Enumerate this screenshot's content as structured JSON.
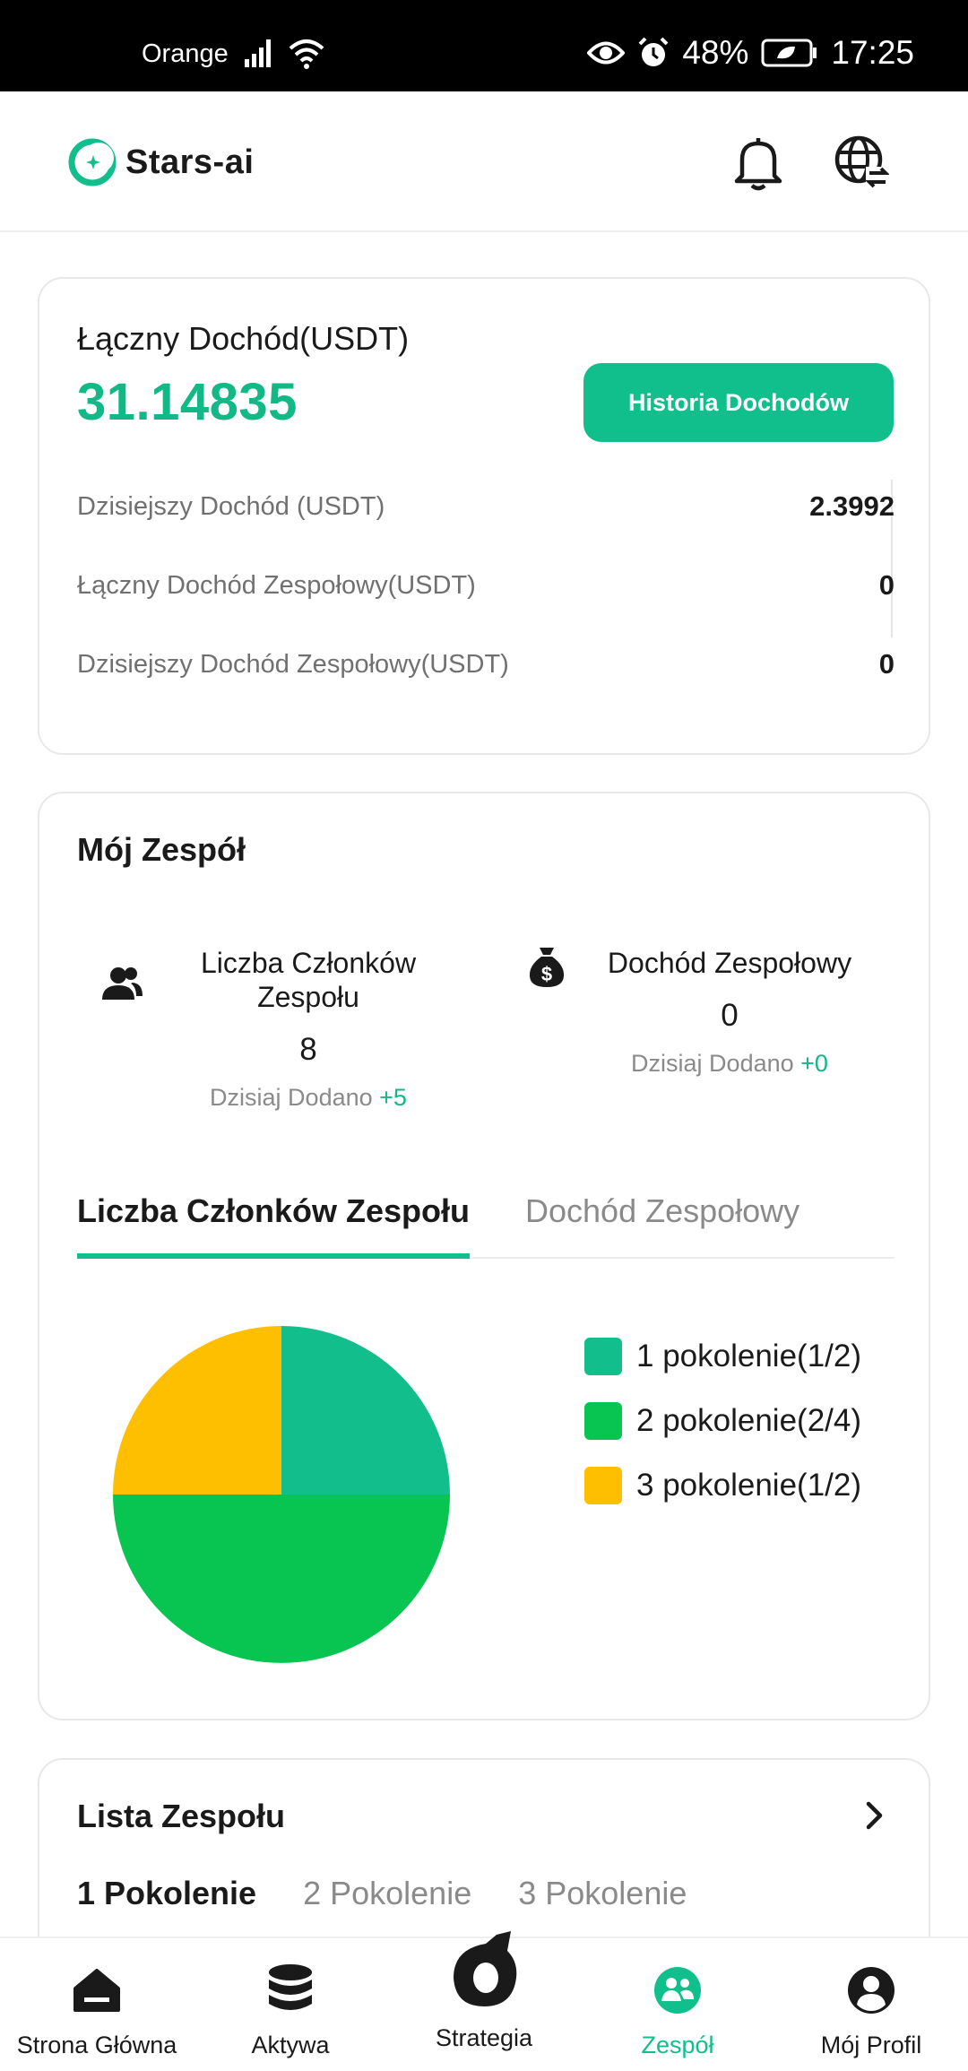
{
  "status_bar": {
    "carrier": "Orange",
    "battery": "48%",
    "time": "17:25"
  },
  "header": {
    "app_name": "Stars-ai"
  },
  "income": {
    "title": "Łączny Dochód(USDT)",
    "total": "31.14835",
    "history_button": "Historia Dochodów",
    "rows": [
      {
        "label": "Dzisiejszy Dochód (USDT)",
        "value": "2.3992"
      },
      {
        "label": "Łączny Dochód Zespołowy(USDT)",
        "value": "0"
      },
      {
        "label": "Dzisiejszy Dochód Zespołowy(USDT)",
        "value": "0"
      }
    ]
  },
  "team": {
    "title": "Mój Zespół",
    "members": {
      "label": "Liczba Członków Zespołu",
      "value": "8",
      "added_label": "Dzisiaj Dodano",
      "added_value": "+5"
    },
    "team_income": {
      "label": "Dochód Zespołowy",
      "value": "0",
      "added_label": "Dzisiaj Dodano",
      "added_value": "+0"
    },
    "tabs": [
      "Liczba Członków Zespołu",
      "Dochód Zespołowy"
    ],
    "active_tab": "Liczba Członków Zespołu"
  },
  "chart_data": {
    "type": "pie",
    "labels": [
      "1 pokolenie(1/2)",
      "2 pokolenie(2/4)",
      "3 pokolenie(1/2)"
    ],
    "values": [
      2,
      4,
      2
    ],
    "colors": [
      "#12bf8c",
      "#08c552",
      "#fdbf00"
    ],
    "legend_position": "right"
  },
  "team_list": {
    "title": "Lista Zespołu",
    "tabs": [
      "1 Pokolenie",
      "2 Pokolenie",
      "3 Pokolenie"
    ],
    "active_tab": "1 Pokolenie"
  },
  "bottom_nav": {
    "items": [
      {
        "label": "Strona Główna",
        "icon": "home-icon"
      },
      {
        "label": "Aktywa",
        "icon": "coins-icon"
      },
      {
        "label": "Strategia",
        "icon": "strategy-icon"
      },
      {
        "label": "Zespół",
        "icon": "team-icon"
      },
      {
        "label": "Mój Profil",
        "icon": "profile-icon"
      }
    ],
    "active": "Zespół"
  }
}
